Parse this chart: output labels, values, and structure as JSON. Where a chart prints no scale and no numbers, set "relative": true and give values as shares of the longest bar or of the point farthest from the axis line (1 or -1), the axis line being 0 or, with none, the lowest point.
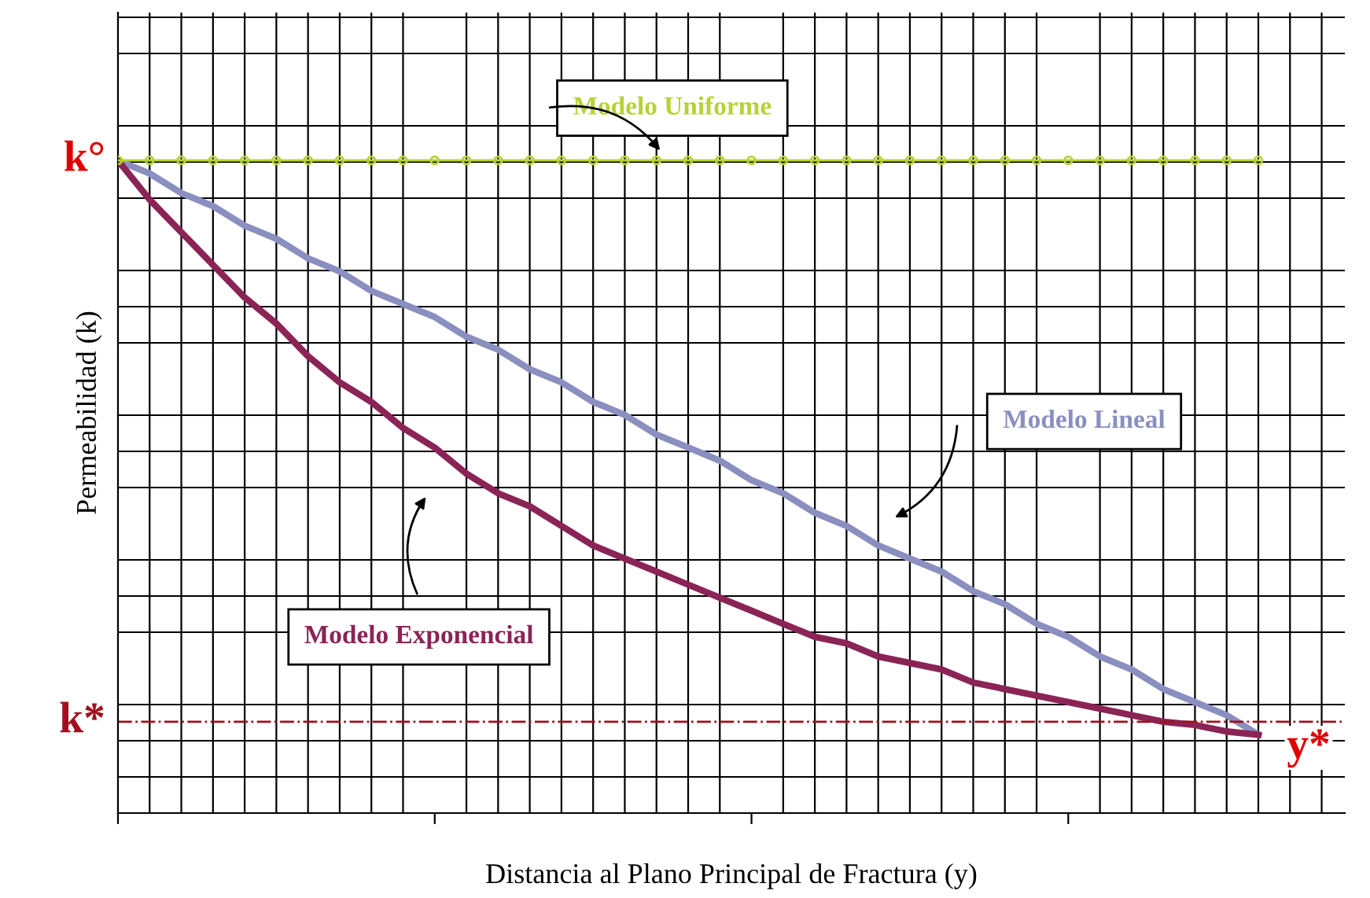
{
  "chart_data": {
    "type": "line",
    "relative": true,
    "xlabel": "Distancia al Plano Principal de Fractura (y)",
    "ylabel": "Permeabilidad (k)",
    "categories": [
      null,
      null,
      null,
      null,
      null,
      null,
      null,
      null,
      null,
      null,
      null,
      null,
      null,
      null,
      null,
      null,
      null,
      null,
      null,
      null,
      null,
      null,
      null,
      null,
      null,
      null,
      null,
      null,
      null,
      null,
      null,
      null,
      null,
      null,
      null,
      null,
      null
    ],
    "series": [
      {
        "name": "Modelo Uniforme",
        "color": "#b5d334",
        "marker": "circle",
        "values": [
          1,
          1,
          1,
          1,
          1,
          1,
          1,
          1,
          1,
          1,
          1,
          1,
          1,
          1,
          1,
          1,
          1,
          1,
          1,
          1,
          1,
          1,
          1,
          1,
          1,
          1,
          1,
          1,
          1,
          1,
          1,
          1,
          1,
          1,
          1,
          1,
          1
        ]
      },
      {
        "name": "Modelo Lineal",
        "color": "#8a8fc0",
        "values": [
          1.0,
          0.98,
          0.95,
          0.93,
          0.9,
          0.88,
          0.85,
          0.83,
          0.8,
          0.78,
          0.76,
          0.73,
          0.71,
          0.68,
          0.66,
          0.63,
          0.61,
          0.58,
          0.56,
          0.54,
          0.51,
          0.49,
          0.46,
          0.44,
          0.41,
          0.39,
          0.37,
          0.34,
          0.32,
          0.29,
          0.27,
          0.24,
          0.22,
          0.19,
          0.17,
          0.15,
          0.12
        ]
      },
      {
        "name": "Modelo Exponencial",
        "color": "#8b2456",
        "values": [
          1.0,
          0.94,
          0.89,
          0.84,
          0.79,
          0.75,
          0.7,
          0.66,
          0.63,
          0.59,
          0.56,
          0.52,
          0.49,
          0.47,
          0.44,
          0.41,
          0.39,
          0.37,
          0.35,
          0.33,
          0.31,
          0.29,
          0.27,
          0.26,
          0.24,
          0.23,
          0.22,
          0.2,
          0.19,
          0.18,
          0.17,
          0.16,
          0.15,
          0.14,
          0.135,
          0.125,
          0.12
        ]
      }
    ],
    "ref_lines": [
      {
        "axis": "y",
        "value": 0.14,
        "label": "k*",
        "color": "#a01020",
        "line_style": "dashdot"
      }
    ],
    "annotations": [
      "k°",
      "y*"
    ],
    "grid": true,
    "legend": false
  }
}
